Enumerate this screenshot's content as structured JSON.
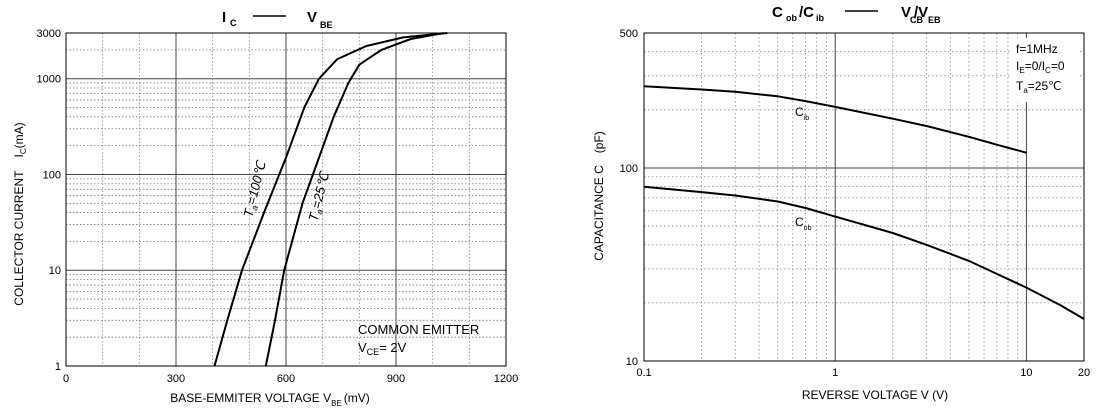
{
  "chart_data": [
    {
      "type": "line",
      "title_main": "I",
      "title_main_sub": "C",
      "title_vs": "V",
      "title_vs_sub": "BE",
      "xlabel": "BASE-EMMITER VOLTAGE V",
      "xlabel_sub": "BE",
      "xlabel_unit": "(mV)",
      "ylabel": "COLLECTOR CURRENT",
      "ylabel_var": "I",
      "ylabel_var_sub": "C",
      "ylabel_unit": "(mA)",
      "x_scale": "linear",
      "y_scale": "log",
      "xlim": [
        0,
        1200
      ],
      "ylim": [
        1,
        3000
      ],
      "x_ticks": [
        0,
        300,
        600,
        900,
        1200
      ],
      "y_ticks": [
        1,
        10,
        100,
        1000,
        3000
      ],
      "grid": true,
      "annotation": {
        "line1": "COMMON EMITTER",
        "line2_var": "V",
        "line2_sub": "CE",
        "line2_value": "= 2V"
      },
      "series": [
        {
          "label_var": "T",
          "label_sub": "a",
          "label_value": "=100℃",
          "points": [
            [
              405,
              1
            ],
            [
              440,
              3
            ],
            [
              480,
              10
            ],
            [
              540,
              40
            ],
            [
              600,
              150
            ],
            [
              650,
              500
            ],
            [
              690,
              1000
            ],
            [
              740,
              1600
            ],
            [
              820,
              2200
            ],
            [
              920,
              2700
            ],
            [
              1040,
              3000
            ]
          ]
        },
        {
          "label_var": "T",
          "label_sub": "a",
          "label_value": "=25℃",
          "points": [
            [
              545,
              1
            ],
            [
              570,
              3
            ],
            [
              595,
              10
            ],
            [
              645,
              50
            ],
            [
              690,
              150
            ],
            [
              730,
              400
            ],
            [
              770,
              900
            ],
            [
              800,
              1400
            ],
            [
              860,
              2000
            ],
            [
              940,
              2600
            ],
            [
              1030,
              3000
            ]
          ]
        }
      ]
    },
    {
      "type": "line",
      "title_a": "C",
      "title_a_sub": "ob",
      "title_b": "/C",
      "title_b_sub": "ib",
      "title_c": "V",
      "title_c_sub": "CB",
      "title_d": "/V",
      "title_d_sub": "EB",
      "xlabel": "REVERSE VOLTAGE V (V)",
      "ylabel": "CAPACITANCE C",
      "ylabel_unit": "(pF)",
      "x_scale": "log",
      "y_scale": "log",
      "xlim": [
        0.1,
        20
      ],
      "ylim": [
        10,
        500
      ],
      "x_ticks": [
        0.1,
        1,
        10,
        20
      ],
      "x_tick_labels": [
        "0.1",
        "1",
        "10",
        "20"
      ],
      "y_ticks": [
        10,
        100,
        500
      ],
      "grid": true,
      "conditions": {
        "line1": "f=1MHz",
        "line2_a": "I",
        "line2_a_sub": "E",
        "line2_b": "=0/I",
        "line2_b_sub": "C",
        "line2_c": "=0",
        "line3_a": "T",
        "line3_a_sub": "a",
        "line3_b": "=25℃"
      },
      "series": [
        {
          "label": "C",
          "label_sub": "ib",
          "points": [
            [
              0.1,
              265
            ],
            [
              0.2,
              255
            ],
            [
              0.3,
              248
            ],
            [
              0.5,
              235
            ],
            [
              0.7,
              222
            ],
            [
              1,
              207
            ],
            [
              2,
              180
            ],
            [
              3,
              165
            ],
            [
              5,
              145
            ],
            [
              7,
              132
            ],
            [
              10,
              120
            ]
          ]
        },
        {
          "label": "C",
          "label_sub": "ob",
          "points": [
            [
              0.1,
              80
            ],
            [
              0.2,
              75
            ],
            [
              0.3,
              72
            ],
            [
              0.5,
              67
            ],
            [
              0.7,
              62
            ],
            [
              1,
              56
            ],
            [
              2,
              46
            ],
            [
              3,
              40
            ],
            [
              5,
              33
            ],
            [
              10,
              24
            ],
            [
              15,
              19.5
            ],
            [
              20,
              16.5
            ]
          ]
        }
      ]
    }
  ]
}
